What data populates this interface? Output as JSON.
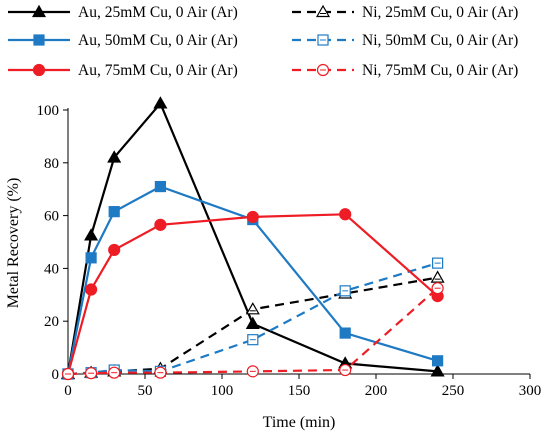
{
  "chart_data": {
    "type": "line",
    "xlabel": "Time (min)",
    "ylabel": "Metal Recovery (%)",
    "xlim": [
      0,
      300
    ],
    "ylim": [
      0,
      100
    ],
    "x_ticks": [
      0,
      50,
      100,
      150,
      200,
      250,
      300
    ],
    "y_ticks": [
      0,
      20,
      40,
      60,
      80,
      100
    ],
    "grid": false,
    "legend_position": "top",
    "series": [
      {
        "name": "Au, 25mM Cu, 0 Air (Ar)",
        "color": "#000000",
        "dash": "solid",
        "marker": "triangle-filled",
        "x": [
          0,
          15,
          30,
          60,
          120,
          180,
          240
        ],
        "y": [
          0,
          52.5,
          82,
          102.5,
          19,
          4,
          1
        ]
      },
      {
        "name": "Ni, 25mM Cu, 0 Air (Ar)",
        "color": "#000000",
        "dash": "dashed",
        "marker": "triangle-open",
        "x": [
          0,
          15,
          30,
          60,
          120,
          180,
          240
        ],
        "y": [
          0,
          0.5,
          1,
          2,
          24.5,
          30.5,
          36.5
        ]
      },
      {
        "name": "Au, 50mM Cu, 0 Air (Ar)",
        "color": "#1f7ac4",
        "dash": "solid",
        "marker": "square-filled",
        "x": [
          0,
          15,
          30,
          60,
          120,
          180,
          240
        ],
        "y": [
          0,
          44,
          61.5,
          71,
          58.5,
          15.5,
          5
        ]
      },
      {
        "name": "Ni, 50mM Cu, 0 Air (Ar)",
        "color": "#1f7ac4",
        "dash": "dashed",
        "marker": "square-open",
        "x": [
          0,
          15,
          30,
          60,
          120,
          180,
          240
        ],
        "y": [
          0,
          0.5,
          1.5,
          1,
          13,
          31.5,
          42
        ]
      },
      {
        "name": "Au, 75mM Cu, 0 Air (Ar)",
        "color": "#ee1c24",
        "dash": "solid",
        "marker": "circle-filled",
        "x": [
          0,
          15,
          30,
          60,
          120,
          180,
          240
        ],
        "y": [
          0,
          32,
          47,
          56.5,
          59.5,
          60.5,
          29.5
        ]
      },
      {
        "name": "Ni, 75mM Cu, 0 Air (Ar)",
        "color": "#ee1c24",
        "dash": "dashed",
        "marker": "circle-open",
        "x": [
          0,
          15,
          30,
          60,
          120,
          180,
          240
        ],
        "y": [
          0,
          0.3,
          0.5,
          0.5,
          1,
          1.5,
          32.5
        ]
      }
    ]
  }
}
